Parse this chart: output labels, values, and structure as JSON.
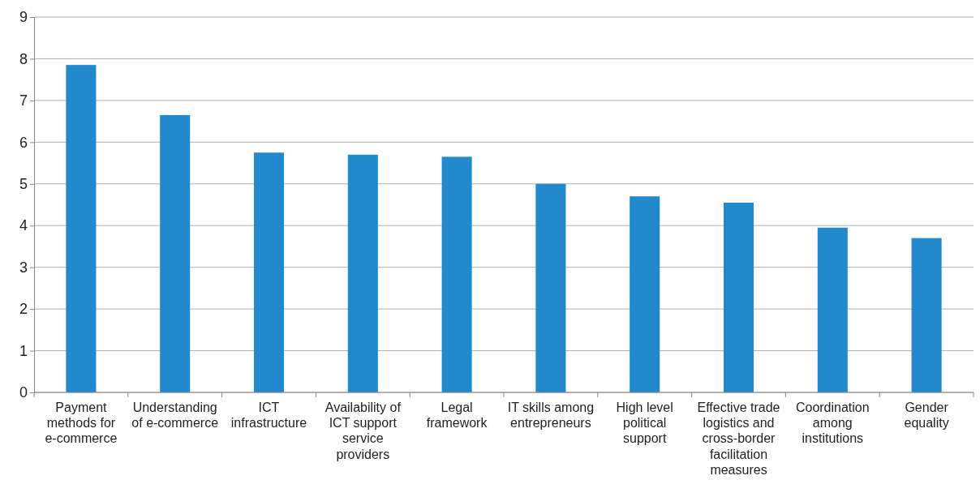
{
  "chart_data": {
    "type": "bar",
    "categories": [
      "Payment methods for e-commerce",
      "Understanding of e-commerce",
      "ICT infrastructure",
      "Availability of ICT support service providers",
      "Legal framework",
      "IT skills among entrepreneurs",
      "High level political support",
      "Effective trade logistics and cross-border facilitation measures",
      "Coordination among institutions",
      "Gender equality"
    ],
    "values": [
      7.85,
      6.65,
      5.75,
      5.7,
      5.65,
      5.0,
      4.7,
      4.55,
      3.95,
      3.7
    ],
    "color": "#2289cc",
    "ylim": [
      0,
      9
    ],
    "yticks": [
      0,
      1,
      2,
      3,
      4,
      5,
      6,
      7,
      8,
      9
    ],
    "grid": "y"
  }
}
